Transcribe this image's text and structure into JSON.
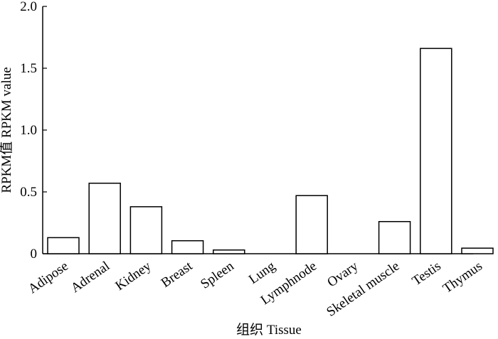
{
  "chart_data": {
    "type": "bar",
    "title": "",
    "xlabel": "组织 Tissue",
    "ylabel": "RPKM值 RPKM value",
    "ylim": [
      0,
      2.0
    ],
    "yticks": [
      "0",
      "0.5",
      "1.0",
      "1.5",
      "2.0"
    ],
    "ytick_values": [
      0,
      0.5,
      1.0,
      1.5,
      2.0
    ],
    "categories": [
      "Adipose",
      "Adrenal",
      "Kidney",
      "Breast",
      "Spleen",
      "Lung",
      "Lymphnode",
      "Ovary",
      "Skeletal muscle",
      "Testis",
      "Thymus"
    ],
    "values": [
      0.13,
      0.57,
      0.38,
      0.105,
      0.03,
      0.0,
      0.47,
      0.0,
      0.26,
      1.66,
      0.045
    ],
    "grid": false,
    "bar_fill": "#ffffff",
    "bar_stroke": "#000000"
  }
}
